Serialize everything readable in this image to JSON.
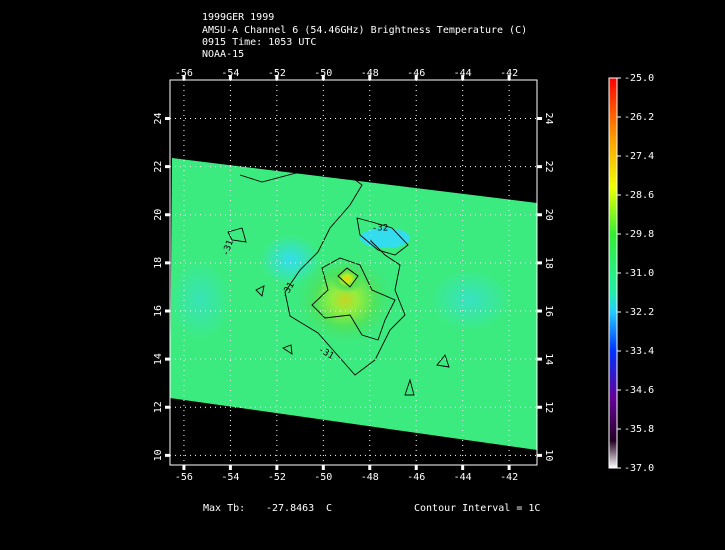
{
  "header": {
    "lines": [
      "1999GER 1999",
      "AMSU-A Channel 6 (54.46GHz) Brightness Temperature (C)",
      "0915 Time: 1053 UTC",
      "NOAA-15"
    ]
  },
  "chart_data": {
    "type": "heatmap",
    "xlim": [
      -56.6,
      -40.8
    ],
    "xticks": [
      -56,
      -54,
      -52,
      -50,
      -48,
      -46,
      -44,
      -42
    ],
    "ylim": [
      9.6,
      25.6
    ],
    "yticks": [
      10,
      12,
      14,
      16,
      18,
      20,
      22,
      24
    ],
    "grid": true,
    "colorbar": {
      "lim": [
        -37,
        -25
      ],
      "ticks": [
        {
          "value": -25,
          "label": "-25.0"
        },
        -26.2,
        -27.4,
        -28.6,
        -29.8,
        {
          "value": -31,
          "label": "-31.0"
        },
        -32.2,
        -33.4,
        -34.6,
        -35.8,
        {
          "value": -37,
          "label": "-37.0"
        }
      ]
    },
    "contour_labels": [
      "-32",
      "-31",
      "-31",
      "-31"
    ]
  },
  "footer": {
    "max_label": "Max Tb:",
    "max_value": -27.8463,
    "max_unit": "C",
    "contour_interval": "Contour Interval = 1C"
  }
}
